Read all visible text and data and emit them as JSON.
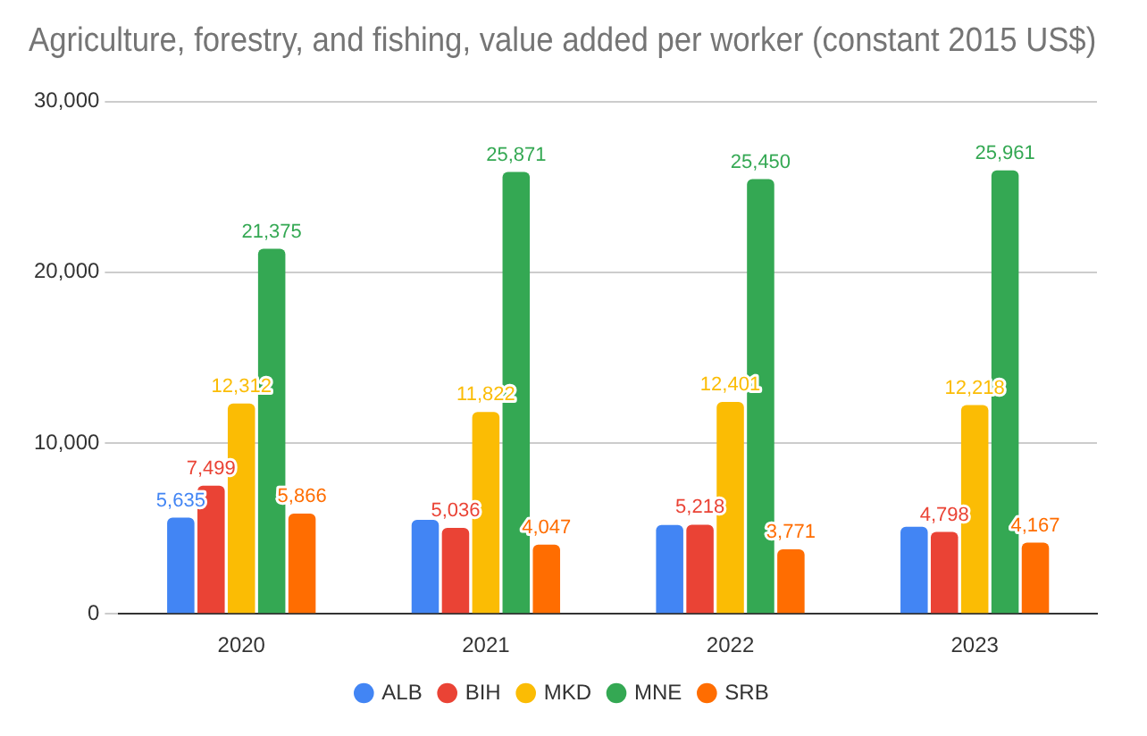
{
  "chart_data": {
    "type": "bar",
    "title": "Agriculture, forestry, and fishing, value added per worker (constant 2015 US$)",
    "categories": [
      "2020",
      "2021",
      "2022",
      "2023"
    ],
    "series": [
      {
        "name": "ALB",
        "color": "#4285f4",
        "values": [
          5635,
          5500,
          5200,
          5100
        ],
        "value_labels": [
          "5,635",
          null,
          null,
          null
        ]
      },
      {
        "name": "BIH",
        "color": "#ea4335",
        "values": [
          7499,
          5036,
          5218,
          4798
        ],
        "value_labels": [
          "7,499",
          "5,036",
          "5,218",
          "4,798"
        ]
      },
      {
        "name": "MKD",
        "color": "#fbbc04",
        "values": [
          12312,
          11822,
          12401,
          12218
        ],
        "value_labels": [
          "12,312",
          "11,822",
          "12,401",
          "12,218"
        ]
      },
      {
        "name": "MNE",
        "color": "#34a853",
        "values": [
          21375,
          25871,
          25450,
          25961
        ],
        "value_labels": [
          "21,375",
          "25,871",
          "25,450",
          "25,961"
        ]
      },
      {
        "name": "SRB",
        "color": "#ff6d01",
        "values": [
          5866,
          4047,
          3771,
          4167
        ],
        "value_labels": [
          "5,866",
          "4,047",
          "3,771",
          "4,167"
        ]
      }
    ],
    "ylim": [
      0,
      30000
    ],
    "yticks": [
      {
        "value": 0,
        "label": "0"
      },
      {
        "value": 10000,
        "label": "10,000"
      },
      {
        "value": 20000,
        "label": "20,000"
      },
      {
        "value": 30000,
        "label": "30,000"
      }
    ],
    "grid": "y",
    "legend": "bottom"
  }
}
